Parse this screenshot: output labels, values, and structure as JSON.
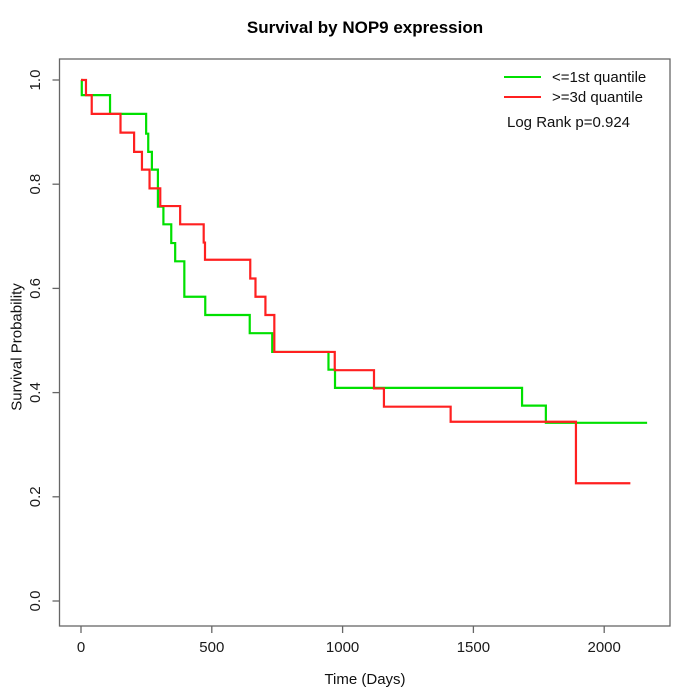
{
  "figure": {
    "title": "Survival by NOP9 expression",
    "x_axis": {
      "label": "Time (Days)"
    },
    "y_axis": {
      "label": "Survival Probability"
    },
    "legend": {
      "items": [
        {
          "label": "<=1st quantile",
          "color": "#00e000"
        },
        {
          "label": ">=3d quantile",
          "color": "#ff2020"
        }
      ],
      "annotation": "Log Rank p=0.924"
    }
  },
  "chart_data": {
    "type": "line",
    "subtype": "kaplan-meier-step",
    "title": "Survival by NOP9 expression",
    "xlabel": "Time (Days)",
    "ylabel": "Survival Probability",
    "xlim": [
      0,
      2250
    ],
    "ylim": [
      0,
      1.0
    ],
    "x_ticks": [
      0,
      500,
      1000,
      1500,
      2000
    ],
    "y_ticks": [
      0.0,
      0.2,
      0.4,
      0.6,
      0.8,
      1.0
    ],
    "grid": false,
    "legend_position": "top-right",
    "log_rank_p": 0.924,
    "axis_color": "#666666",
    "text_color": "#1a1a1a",
    "series": [
      {
        "name": "<=1st quantile",
        "color": "#00e000",
        "start": [
          0,
          1.0
        ],
        "steps": [
          [
            3,
            0.971
          ],
          [
            111,
            0.935
          ],
          [
            249,
            0.897
          ],
          [
            257,
            0.862
          ],
          [
            271,
            0.828
          ],
          [
            294,
            0.757
          ],
          [
            315,
            0.723
          ],
          [
            345,
            0.687
          ],
          [
            360,
            0.652
          ],
          [
            395,
            0.584
          ],
          [
            475,
            0.549
          ],
          [
            645,
            0.514
          ],
          [
            731,
            0.478
          ],
          [
            946,
            0.444
          ],
          [
            971,
            0.409
          ],
          [
            1686,
            0.375
          ],
          [
            1777,
            0.342
          ]
        ],
        "end_time": 2164
      },
      {
        "name": ">=3d quantile",
        "color": "#ff2020",
        "start": [
          0,
          1.0
        ],
        "steps": [
          [
            19,
            0.971
          ],
          [
            41,
            0.935
          ],
          [
            151,
            0.899
          ],
          [
            203,
            0.862
          ],
          [
            233,
            0.828
          ],
          [
            262,
            0.792
          ],
          [
            303,
            0.758
          ],
          [
            379,
            0.723
          ],
          [
            469,
            0.688
          ],
          [
            474,
            0.655
          ],
          [
            647,
            0.619
          ],
          [
            667,
            0.584
          ],
          [
            705,
            0.549
          ],
          [
            739,
            0.478
          ],
          [
            970,
            0.443
          ],
          [
            1120,
            0.408
          ],
          [
            1158,
            0.373
          ],
          [
            1413,
            0.344
          ],
          [
            1892,
            0.226
          ]
        ],
        "end_time": 2100
      }
    ]
  }
}
